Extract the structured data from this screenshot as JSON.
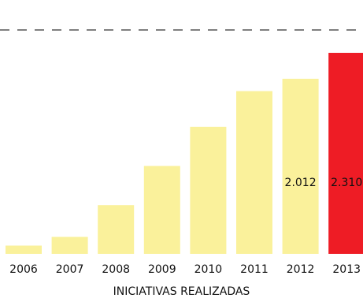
{
  "chart_data": {
    "type": "bar",
    "categories": [
      "2006",
      "2007",
      "2008",
      "2009",
      "2010",
      "2011",
      "2012",
      "2013"
    ],
    "values": [
      95,
      195,
      560,
      1010,
      1460,
      1870,
      2012,
      2310
    ],
    "data_labels": [
      null,
      null,
      null,
      null,
      null,
      null,
      "2.012",
      "2.310"
    ],
    "highlight_index": 7,
    "colors": {
      "bar": "#FAF19B",
      "highlight": "#EE1C25",
      "label": "#111111",
      "reference_line": "#333333"
    },
    "reference_line": {
      "style": "dashed"
    },
    "xlabel": "INICIATIVAS REALIZADAS",
    "ylim": [
      0,
      2600
    ],
    "grid": false,
    "legend": "none"
  }
}
